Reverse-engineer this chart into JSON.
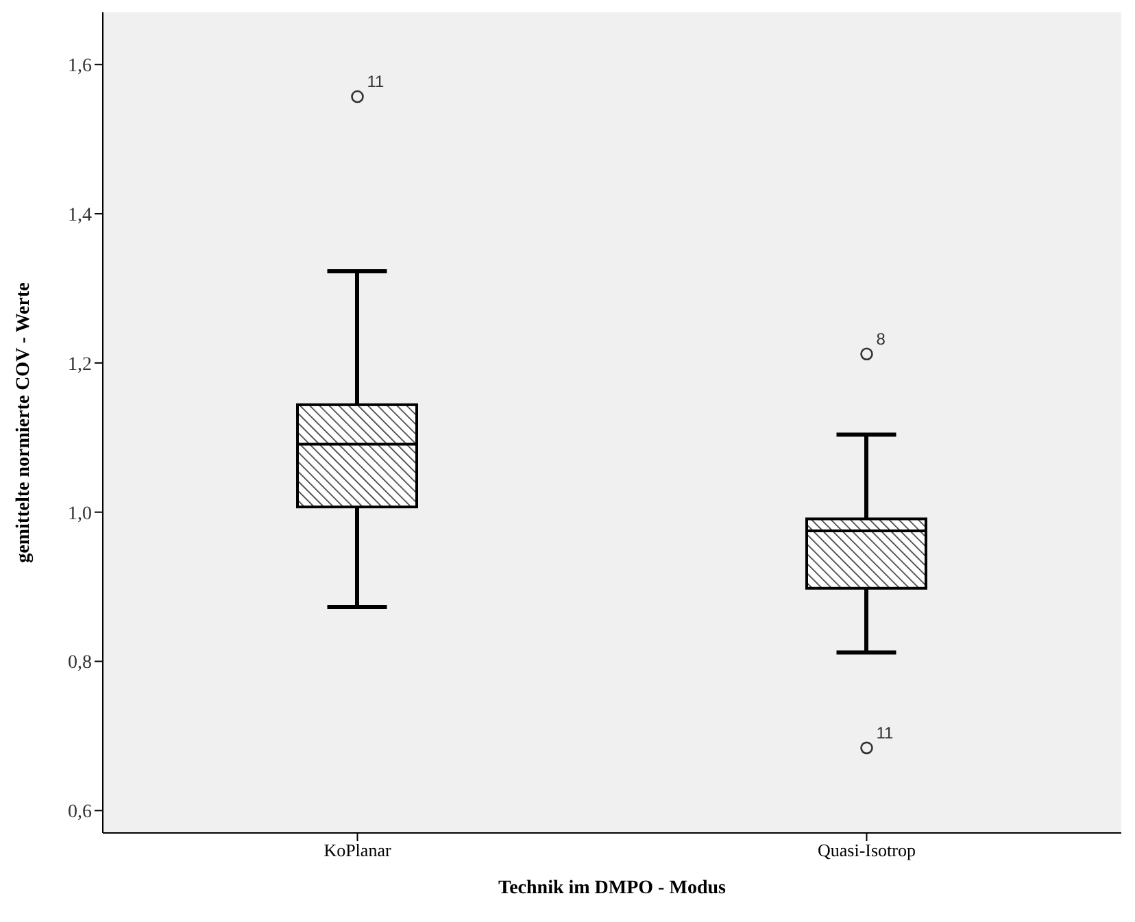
{
  "chart_data": {
    "type": "box",
    "xlabel": "Technik im DMPO - Modus",
    "ylabel": "gemittelte normierte COV - Werte",
    "categories": [
      "KoPlanar",
      "Quasi-Isotrop"
    ],
    "boxes": [
      {
        "low": 0.873,
        "q1": 1.007,
        "median": 1.091,
        "q3": 1.144,
        "high": 1.323,
        "outliers": [
          1.557
        ]
      },
      {
        "low": 0.812,
        "q1": 0.898,
        "median": 0.975,
        "q3": 0.991,
        "high": 1.104,
        "outliers": [
          1.212,
          0.684
        ]
      }
    ],
    "color": "#000000",
    "ylim": [
      0.57,
      1.67
    ],
    "yticks": [
      {
        "value": 0.6,
        "label": "0,6"
      },
      {
        "value": 0.8,
        "label": "0,8"
      },
      {
        "value": 1.0,
        "label": "1,0"
      },
      {
        "value": 1.2,
        "label": "1,2"
      },
      {
        "value": 1.4,
        "label": "1,4"
      },
      {
        "value": 1.6,
        "label": "1,6"
      }
    ],
    "annotations": [
      "11",
      "8",
      "11"
    ],
    "grid": false,
    "legend": false
  }
}
